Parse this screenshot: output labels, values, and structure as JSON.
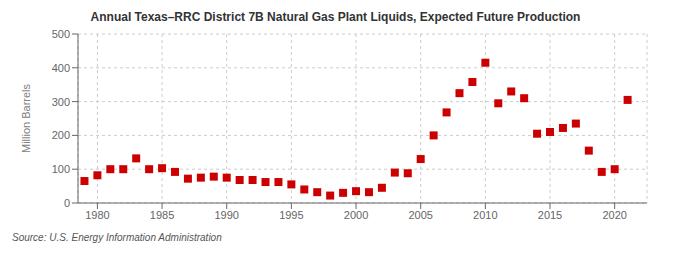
{
  "chart_data": {
    "type": "scatter",
    "title": "Annual Texas–RRC District 7B Natural Gas Plant Liquids, Expected Future Production",
    "ylabel": "Million Barrels",
    "annotations": [
      "Source: U.S. Energy Information Administration"
    ],
    "color": "#cc0000",
    "marker": "square",
    "grid": true,
    "xlim": [
      1978.5,
      2022.5
    ],
    "ylim": [
      0,
      500
    ],
    "xticks": [
      1980,
      1985,
      1990,
      1995,
      2000,
      2005,
      2010,
      2015,
      2020
    ],
    "yticks": [
      0,
      100,
      200,
      300,
      400,
      500
    ],
    "x": [
      1979,
      1980,
      1981,
      1982,
      1983,
      1984,
      1985,
      1986,
      1987,
      1988,
      1989,
      1990,
      1991,
      1992,
      1993,
      1994,
      1995,
      1996,
      1997,
      1998,
      1999,
      2000,
      2001,
      2002,
      2003,
      2004,
      2005,
      2006,
      2007,
      2008,
      2009,
      2010,
      2011,
      2012,
      2013,
      2014,
      2015,
      2016,
      2017,
      2018,
      2019,
      2020,
      2021
    ],
    "values": [
      65,
      82,
      100,
      100,
      132,
      100,
      103,
      92,
      72,
      75,
      78,
      75,
      68,
      68,
      62,
      62,
      55,
      40,
      32,
      22,
      30,
      35,
      32,
      45,
      90,
      88,
      130,
      200,
      268,
      325,
      358,
      415,
      295,
      330,
      310,
      205,
      210,
      222,
      235,
      155,
      92,
      100,
      305
    ]
  }
}
